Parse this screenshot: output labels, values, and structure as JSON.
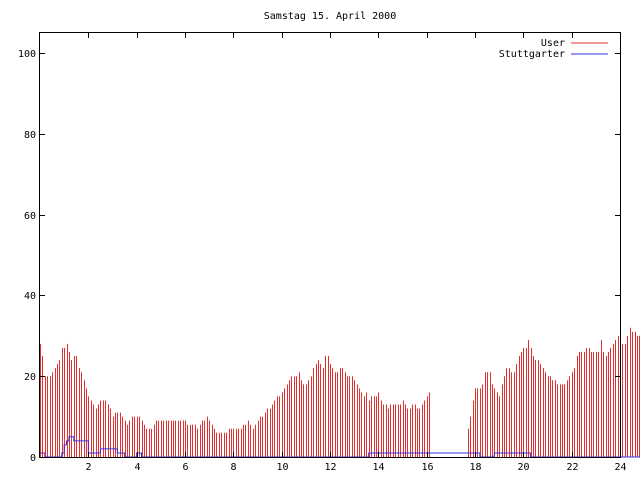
{
  "chart_data": {
    "type": "bar",
    "title": "Samstag 15. April 2000",
    "xlabel": "",
    "ylabel": "",
    "xlim": [
      0,
      24
    ],
    "ylim": [
      0,
      105
    ],
    "x_ticks": [
      2,
      4,
      6,
      8,
      10,
      12,
      14,
      16,
      18,
      20,
      22,
      24
    ],
    "y_ticks": [
      0,
      20,
      40,
      60,
      80,
      100
    ],
    "grid": false,
    "legend_position": "top-right",
    "series": [
      {
        "name": "User",
        "style": "impulses",
        "color": "#e03030",
        "interval_hours": 0.1,
        "values": [
          28,
          25,
          20,
          20,
          20,
          21,
          22,
          23,
          24,
          27,
          27,
          28,
          26,
          24,
          25,
          25,
          22,
          21,
          19,
          17,
          15,
          14,
          13,
          12,
          13,
          14,
          14,
          14,
          13,
          12,
          10,
          11,
          11,
          11,
          10,
          9,
          8,
          9,
          10,
          10,
          10,
          10,
          9,
          8,
          7,
          7,
          7,
          8,
          9,
          9,
          9,
          9,
          9,
          9,
          9,
          9,
          9,
          9,
          9,
          9,
          9,
          8,
          8,
          8,
          8,
          7,
          8,
          9,
          9,
          10,
          9,
          8,
          7,
          6,
          6,
          6,
          6,
          6,
          7,
          7,
          7,
          7,
          7,
          7,
          8,
          8,
          9,
          8,
          7,
          8,
          9,
          10,
          10,
          11,
          12,
          12,
          13,
          14,
          15,
          15,
          16,
          17,
          18,
          19,
          20,
          20,
          20,
          21,
          19,
          18,
          18,
          19,
          20,
          22,
          23,
          24,
          23,
          22,
          25,
          25,
          23,
          22,
          21,
          21,
          22,
          22,
          21,
          20,
          20,
          20,
          19,
          18,
          17,
          16,
          15,
          16,
          14,
          15,
          15,
          15,
          16,
          14,
          13,
          13,
          12,
          13,
          13,
          13,
          13,
          13,
          14,
          13,
          12,
          12,
          13,
          13,
          12,
          12,
          13,
          14,
          15,
          16,
          0,
          0,
          0,
          0,
          0,
          0,
          0,
          0,
          0,
          0,
          0,
          0,
          0,
          0,
          0,
          7,
          10,
          14,
          17,
          17,
          17,
          18,
          21,
          21,
          21,
          18,
          17,
          16,
          15,
          18,
          20,
          22,
          22,
          21,
          21,
          23,
          25,
          26,
          27,
          27,
          29,
          27,
          25,
          24,
          24,
          23,
          22,
          21,
          20,
          20,
          19,
          19,
          18,
          18,
          18,
          18,
          19,
          20,
          21,
          22,
          25,
          26,
          26,
          26,
          27,
          27,
          26,
          26,
          26,
          26,
          29,
          26,
          25,
          26,
          27,
          28,
          29,
          30,
          29,
          28,
          28,
          30,
          32,
          31,
          31,
          30,
          30,
          31,
          29,
          30,
          31,
          28,
          29,
          29,
          30,
          30,
          30,
          29,
          28,
          29,
          29
        ]
      },
      {
        "name": "Stuttgarter",
        "style": "steps",
        "color": "#3030e0",
        "interval_hours": 0.1,
        "values": [
          1,
          1,
          0,
          0,
          0,
          0,
          0,
          0,
          0,
          1,
          3,
          4,
          5,
          5,
          4,
          4,
          4,
          4,
          4,
          4,
          1,
          1,
          1,
          1,
          1,
          2,
          2,
          2,
          2,
          2,
          2,
          2,
          1,
          1,
          1,
          0,
          0,
          0,
          0,
          0,
          1,
          1,
          0,
          0,
          0,
          0,
          0,
          0,
          0,
          0,
          0,
          0,
          0,
          0,
          0,
          0,
          0,
          0,
          0,
          0,
          0,
          0,
          0,
          0,
          0,
          0,
          0,
          0,
          0,
          0,
          0,
          0,
          0,
          0,
          0,
          0,
          0,
          0,
          0,
          0,
          0,
          0,
          0,
          0,
          0,
          0,
          0,
          0,
          0,
          0,
          0,
          0,
          0,
          0,
          0,
          0,
          0,
          0,
          0,
          0,
          0,
          0,
          0,
          0,
          0,
          0,
          0,
          0,
          0,
          0,
          0,
          0,
          0,
          0,
          0,
          0,
          0,
          0,
          0,
          0,
          0,
          0,
          0,
          0,
          0,
          0,
          0,
          0,
          0,
          0,
          0,
          0,
          0,
          0,
          0,
          0,
          1,
          1,
          1,
          1,
          1,
          1,
          1,
          1,
          1,
          1,
          1,
          1,
          1,
          1,
          1,
          1,
          1,
          1,
          1,
          1,
          1,
          1,
          1,
          1,
          1,
          1,
          1,
          1,
          1,
          1,
          1,
          1,
          1,
          1,
          1,
          1,
          1,
          1,
          1,
          1,
          1,
          1,
          1,
          1,
          1,
          1,
          0,
          0,
          0,
          0,
          0,
          0,
          1,
          1,
          1,
          1,
          1,
          1,
          1,
          1,
          1,
          1,
          1,
          1,
          1,
          1,
          1,
          0,
          0,
          0,
          0,
          0,
          0,
          0,
          0,
          0,
          0,
          0,
          0,
          0,
          0,
          0,
          0,
          0,
          0,
          0,
          0,
          0,
          0,
          0,
          0,
          0,
          0,
          0,
          0,
          0,
          0,
          0,
          0,
          0,
          0,
          0,
          0,
          0,
          0,
          0,
          0,
          0,
          0,
          0,
          0,
          0,
          0,
          0,
          0,
          0,
          0,
          0,
          0,
          0,
          0,
          0,
          0,
          0,
          0,
          0,
          0,
          0,
          0,
          0,
          0,
          0,
          0,
          0,
          0,
          0
        ]
      }
    ]
  }
}
